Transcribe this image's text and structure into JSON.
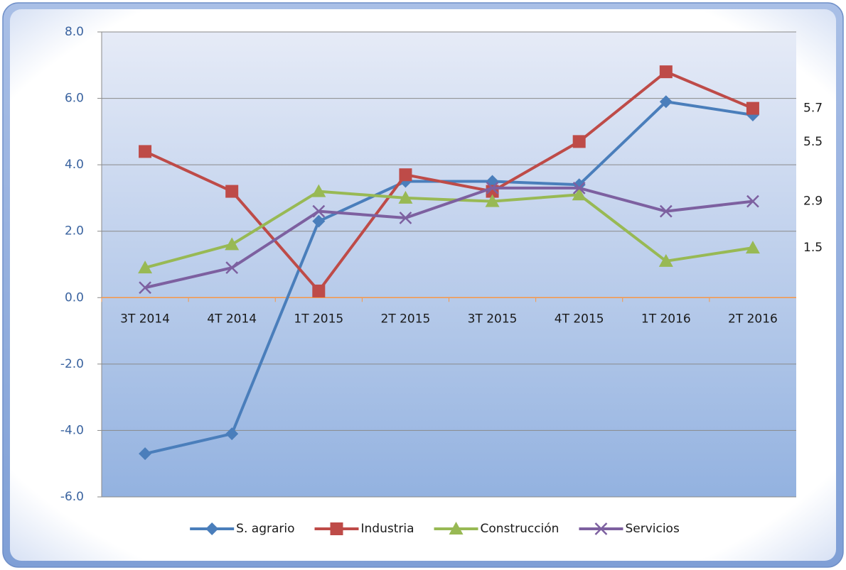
{
  "chart_data": {
    "type": "line",
    "categories": [
      "3T 2014",
      "4T 2014",
      "1T 2015",
      "2T 2015",
      "3T 2015",
      "4T 2015",
      "1T 2016",
      "2T 2016"
    ],
    "series": [
      {
        "name": "S. agrario",
        "color": "#4a7ebb",
        "marker": "diamond",
        "values": [
          -4.7,
          -4.1,
          2.3,
          3.5,
          3.5,
          3.4,
          5.9,
          5.5
        ]
      },
      {
        "name": "Industria",
        "color": "#be4b48",
        "marker": "square",
        "values": [
          4.4,
          3.2,
          0.2,
          3.7,
          3.2,
          4.7,
          6.8,
          5.7
        ]
      },
      {
        "name": "Construcción",
        "color": "#98b954",
        "marker": "triangle",
        "values": [
          0.9,
          1.6,
          3.2,
          3.0,
          2.9,
          3.1,
          1.1,
          1.5
        ]
      },
      {
        "name": "Servicios",
        "color": "#7d60a0",
        "marker": "x",
        "values": [
          0.3,
          0.9,
          2.6,
          2.4,
          3.3,
          3.3,
          2.6,
          2.9
        ]
      }
    ],
    "ylim": [
      -6,
      8
    ],
    "yticks": [
      {
        "value": -6,
        "label": "-6.0"
      },
      {
        "value": -4,
        "label": "-4.0"
      },
      {
        "value": -2,
        "label": "-2.0"
      },
      {
        "value": 0,
        "label": "0.0"
      },
      {
        "value": 2,
        "label": "2.0"
      },
      {
        "value": 4,
        "label": "4.0"
      },
      {
        "value": 6,
        "label": "6.0"
      },
      {
        "value": 8,
        "label": "8.0"
      }
    ],
    "grid": true,
    "legend": "bottom"
  }
}
